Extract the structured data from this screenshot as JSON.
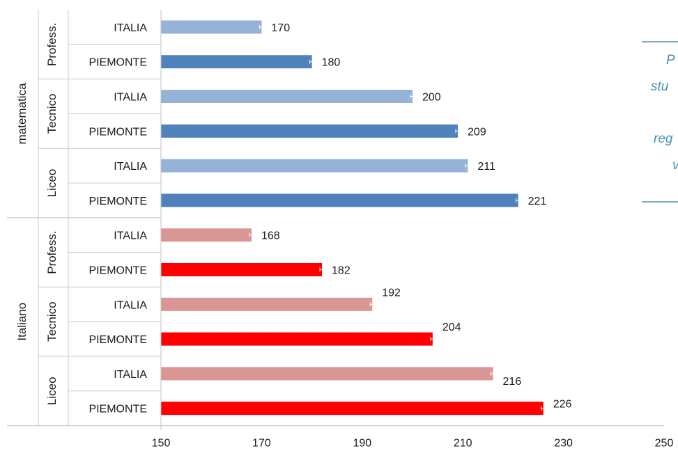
{
  "chart_data": {
    "type": "bar",
    "orientation": "horizontal",
    "xlim": [
      150,
      250
    ],
    "xticks": [
      150,
      170,
      190,
      210,
      230,
      250
    ],
    "grid": false,
    "colors": {
      "matematica_italia": "#95b3d7",
      "matematica_piemonte": "#4f81bd",
      "italiano_italia": "#da9694",
      "italiano_piemonte": "#ff0000"
    },
    "subjects": [
      {
        "name": "matematica",
        "schools": [
          {
            "name": "Profess.",
            "bars": [
              {
                "label": "ITALIA",
                "value": 170,
                "color_key": "matematica_italia"
              },
              {
                "label": "PIEMONTE",
                "value": 180,
                "color_key": "matematica_piemonte"
              }
            ]
          },
          {
            "name": "Tecnico",
            "bars": [
              {
                "label": "ITALIA",
                "value": 200,
                "color_key": "matematica_italia"
              },
              {
                "label": "PIEMONTE",
                "value": 209,
                "color_key": "matematica_piemonte"
              }
            ]
          },
          {
            "name": "Liceo",
            "bars": [
              {
                "label": "ITALIA",
                "value": 211,
                "color_key": "matematica_italia"
              },
              {
                "label": "PIEMONTE",
                "value": 221,
                "color_key": "matematica_piemonte"
              }
            ]
          }
        ]
      },
      {
        "name": "Italiano",
        "schools": [
          {
            "name": "Profess.",
            "bars": [
              {
                "label": "ITALIA",
                "value": 168,
                "color_key": "italiano_italia"
              },
              {
                "label": "PIEMONTE",
                "value": 182,
                "color_key": "italiano_piemonte"
              }
            ]
          },
          {
            "name": "Tecnico",
            "bars": [
              {
                "label": "ITALIA",
                "value": 192,
                "color_key": "italiano_italia"
              },
              {
                "label": "PIEMONTE",
                "value": 204,
                "color_key": "italiano_piemonte"
              }
            ]
          },
          {
            "name": "Liceo",
            "bars": [
              {
                "label": "ITALIA",
                "value": 216,
                "color_key": "italiano_italia"
              },
              {
                "label": "PIEMONTE",
                "value": 226,
                "color_key": "italiano_piemonte"
              }
            ]
          }
        ]
      }
    ]
  },
  "side_note": {
    "lines": [
      "P",
      "stu",
      "",
      "reg",
      "v"
    ],
    "color": "#4a8fb5"
  }
}
